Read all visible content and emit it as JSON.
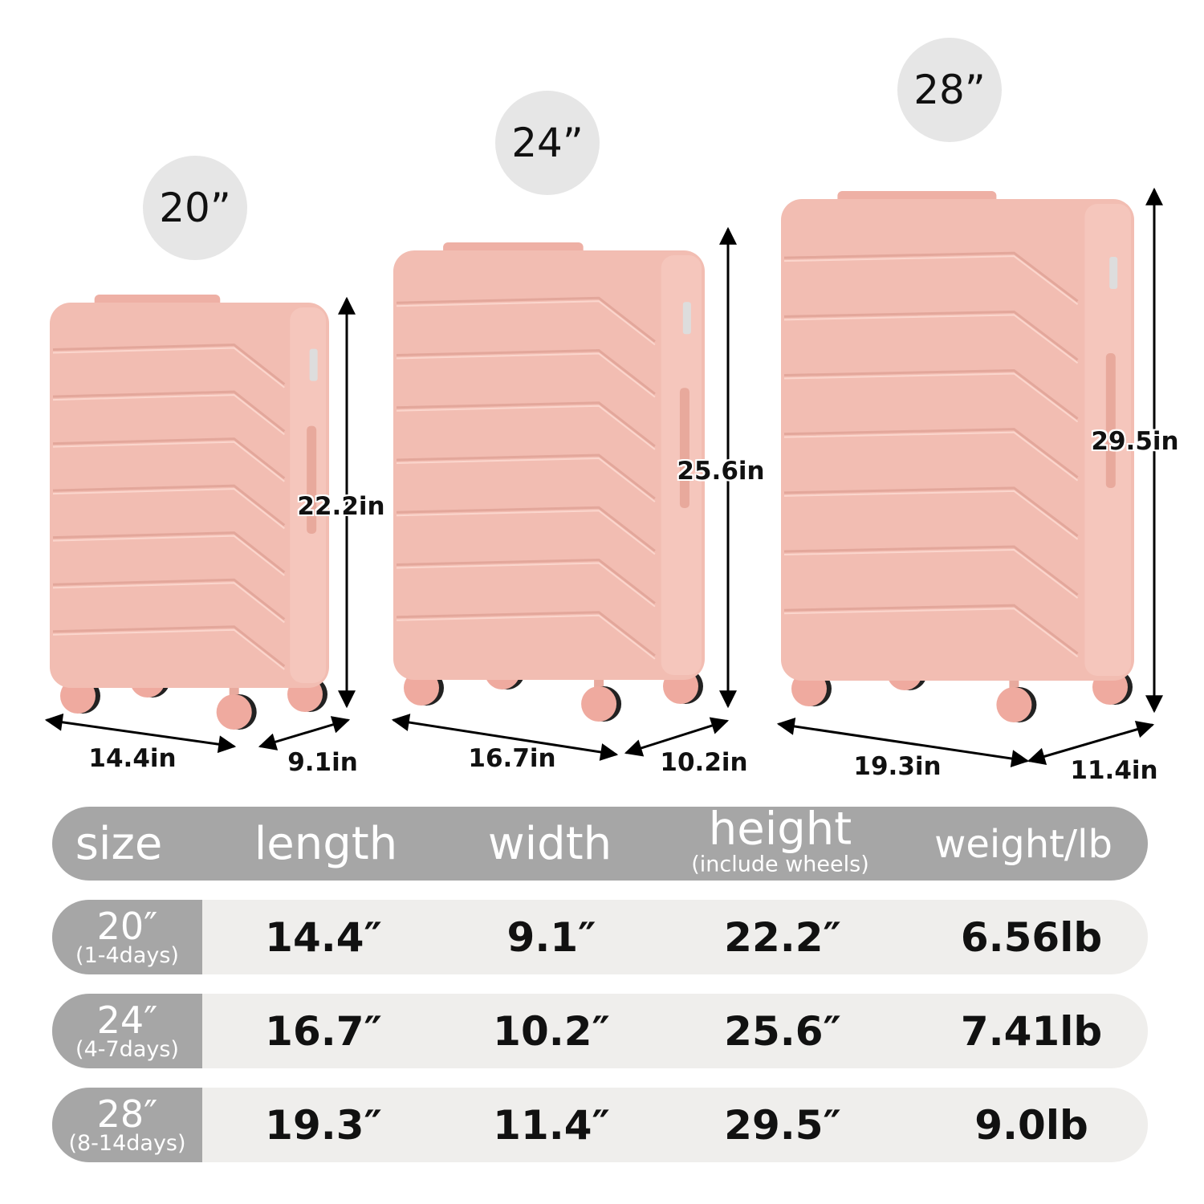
{
  "product_color": "#f2bdb2",
  "sizes": [
    {
      "badge": "20”",
      "height_label": "22.2in",
      "length_label": "14.4in",
      "width_label": "9.1in"
    },
    {
      "badge": "24”",
      "height_label": "25.6in",
      "length_label": "16.7in",
      "width_label": "10.2in"
    },
    {
      "badge": "28”",
      "height_label": "29.5in",
      "length_label": "19.3in",
      "width_label": "11.4in"
    }
  ],
  "table": {
    "headers": {
      "size": "size",
      "length": "length",
      "width": "width",
      "height": "height",
      "height_note": "(include wheels)",
      "weight": "weight/lb"
    },
    "rows": [
      {
        "size": "20″",
        "days": "(1-4days)",
        "length": "14.4″",
        "width": "9.1″",
        "height": "22.2″",
        "weight": "6.56lb"
      },
      {
        "size": "24″",
        "days": "(4-7days)",
        "length": "16.7″",
        "width": "10.2″",
        "height": "25.6″",
        "weight": "7.41lb"
      },
      {
        "size": "28″",
        "days": "(8-14days)",
        "length": "19.3″",
        "width": "11.4″",
        "height": "29.5″",
        "weight": "9.0lb"
      }
    ]
  }
}
